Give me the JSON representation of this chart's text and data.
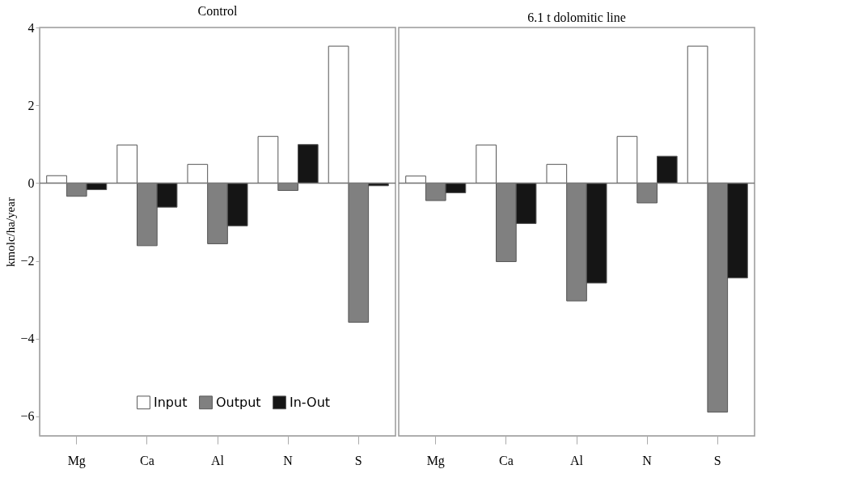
{
  "chart_data": [
    {
      "type": "bar",
      "title": "Control",
      "ylabel": "kmolc/ha/year",
      "categories": [
        "Mg",
        "Ca",
        "Al",
        "N",
        "S"
      ],
      "series": [
        {
          "name": "Input",
          "color": "#ffffff",
          "values": [
            0.19,
            0.98,
            0.48,
            1.2,
            3.52
          ]
        },
        {
          "name": "Output",
          "color": "#808080",
          "values": [
            -0.34,
            -1.61,
            -1.56,
            -0.19,
            -3.58
          ]
        },
        {
          "name": "In-Out",
          "color": "#151515",
          "values": [
            -0.17,
            -0.62,
            -1.1,
            0.99,
            -0.07
          ]
        }
      ],
      "ylim": [
        -6.5,
        4
      ],
      "yticks": [
        -6,
        -4,
        -2,
        0,
        2,
        4
      ],
      "ref_lines": [
        {
          "axis": "y",
          "value": 0
        }
      ],
      "legend": "bottom",
      "grid": false
    },
    {
      "type": "bar",
      "title": "6.1 t dolomitic line",
      "categories": [
        "Mg",
        "Ca",
        "Al",
        "N",
        "S"
      ],
      "series": [
        {
          "color": "#ffffff",
          "values": [
            0.18,
            0.98,
            0.48,
            1.2,
            3.52
          ]
        },
        {
          "color": "#808080",
          "values": [
            -0.45,
            -2.02,
            -3.03,
            -0.51,
            -5.89
          ]
        },
        {
          "color": "#151515",
          "values": [
            -0.25,
            -1.04,
            -2.57,
            0.69,
            -2.44
          ]
        }
      ],
      "ylim": [
        -6.5,
        4
      ],
      "yticks": [
        -6,
        -4,
        -2,
        0,
        2,
        4
      ],
      "ref_lines": [
        {
          "axis": "y",
          "value": 0
        }
      ],
      "tick_labels": "x",
      "grid": false
    }
  ]
}
